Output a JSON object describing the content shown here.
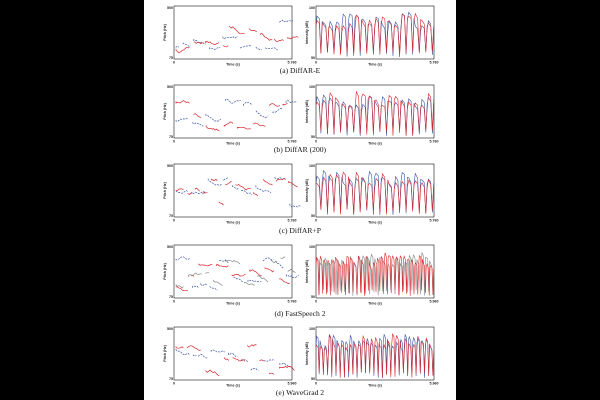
{
  "panels": [
    {
      "caption": "(a) DiffAR-E",
      "pitch_end": "5.760",
      "int_end": "5.760"
    },
    {
      "caption": "(b) DiffAR (200)",
      "pitch_end": "5.760",
      "int_end": "5.760"
    },
    {
      "caption": "(c) DiffAR+P",
      "pitch_end": "5.760",
      "int_end": "5.760"
    },
    {
      "caption": "(d) FastSpeech 2",
      "pitch_end": "5.760",
      "int_end": "5.960"
    },
    {
      "caption": "(e) WaveGrad 2",
      "pitch_end": "5.960",
      "int_end": "5.960"
    }
  ],
  "colors": {
    "red": "#d7262c",
    "blue": "#3b55a6",
    "gray": "#888888"
  },
  "chart_data": [
    {
      "type": "line",
      "title": "(a) DiffAR-E",
      "xlabel": "Time (s)",
      "ylabel": "Pitch (Hz)",
      "xlim": [
        0,
        5.76
      ],
      "ylim": [
        75,
        500
      ],
      "tick_labels": [
        "0",
        "5.760",
        "75",
        "500"
      ]
    },
    {
      "type": "line",
      "title": "(a) DiffAR-E",
      "xlabel": "Time (s)",
      "ylabel": "Intensity (dB)",
      "xlim": [
        0,
        5.76
      ],
      "ylim": [
        50,
        100
      ],
      "tick_labels": [
        "0",
        "5.760",
        "50",
        "100"
      ]
    },
    {
      "type": "line",
      "title": "(b) DiffAR (200)",
      "xlabel": "Time (s)",
      "ylabel": "Pitch (Hz)",
      "xlim": [
        0,
        5.76
      ],
      "ylim": [
        75,
        500
      ],
      "tick_labels": [
        "0",
        "5.760",
        "75",
        "500"
      ]
    },
    {
      "type": "line",
      "title": "(b) DiffAR (200)",
      "xlabel": "Time (s)",
      "ylabel": "Intensity (dB)",
      "xlim": [
        0,
        5.76
      ],
      "ylim": [
        50,
        100
      ],
      "tick_labels": [
        "0",
        "5.760",
        "50",
        "100"
      ]
    },
    {
      "type": "line",
      "title": "(c) DiffAR+P",
      "xlabel": "Time (s)",
      "ylabel": "Pitch (Hz)",
      "xlim": [
        0,
        5.76
      ],
      "ylim": [
        75,
        500
      ],
      "tick_labels": [
        "0",
        "5.760",
        "75",
        "500"
      ]
    },
    {
      "type": "line",
      "title": "(c) DiffAR+P",
      "xlabel": "Time (s)",
      "ylabel": "Intensity (dB)",
      "xlim": [
        0,
        5.76
      ],
      "ylim": [
        50,
        100
      ],
      "tick_labels": [
        "0",
        "5.760",
        "50",
        "100"
      ]
    },
    {
      "type": "line",
      "title": "(d) FastSpeech 2",
      "xlabel": "Time (s)",
      "ylabel": "Pitch (Hz)",
      "xlim": [
        0,
        5.76
      ],
      "ylim": [
        75,
        500
      ],
      "tick_labels": [
        "0",
        "5.760",
        "75",
        "500"
      ]
    },
    {
      "type": "line",
      "title": "(d) FastSpeech 2",
      "xlabel": "Time (s)",
      "ylabel": "Intensity (dB)",
      "xlim": [
        0,
        5.96
      ],
      "ylim": [
        50,
        100
      ],
      "tick_labels": [
        "0",
        "5.960",
        "50",
        "100"
      ]
    },
    {
      "type": "line",
      "title": "(e) WaveGrad 2",
      "xlabel": "Time (s)",
      "ylabel": "Pitch (Hz)",
      "xlim": [
        0,
        5.96
      ],
      "ylim": [
        75,
        500
      ],
      "tick_labels": [
        "0",
        "5.960",
        "75",
        "500"
      ]
    },
    {
      "type": "line",
      "title": "(e) WaveGrad 2",
      "xlabel": "Time (s)",
      "ylabel": "Intensity (dB)",
      "xlim": [
        0,
        5.96
      ],
      "ylim": [
        50,
        100
      ],
      "tick_labels": [
        "0",
        "5.960",
        "50",
        "100"
      ]
    }
  ]
}
